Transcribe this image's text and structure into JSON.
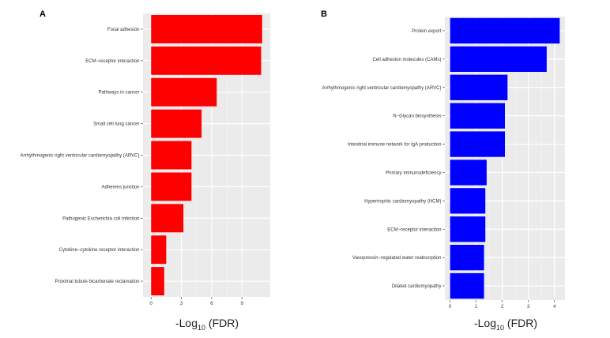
{
  "chart_data": [
    {
      "panel": "A",
      "type": "bar",
      "orientation": "horizontal",
      "color": "#ff0000",
      "categories": [
        "Focal adhesion",
        "ECM−receptor interaction",
        "Pathways in cancer",
        "Small cell lung cancer",
        "Arrhythmogenic right ventricular cardiomyopathy (ARVC)",
        "Adherens junction",
        "Pathogenic Escherichia coli infection",
        "Cytokine−cytokine receptor interaction",
        "Proximal tubule bicarbonate reclamation"
      ],
      "values": [
        11.0,
        10.9,
        6.5,
        5.0,
        4.0,
        4.0,
        3.2,
        1.5,
        1.3
      ],
      "xlim": [
        -0.8,
        11.8
      ],
      "xticks": [
        0,
        3,
        6,
        9
      ],
      "xlabel_main": "-Log",
      "xlabel_sub": "10",
      "xlabel_tail": " (FDR)"
    },
    {
      "panel": "B",
      "type": "bar",
      "orientation": "horizontal",
      "color": "#0000ff",
      "categories": [
        "Protein export",
        "Cell adhesion molecules (CAMs)",
        "Arrhythmogenic right ventricular cardiomyopathy (ARVC)",
        "N−Glycan biosynthesis",
        "Intestinal immune network for IgA production",
        "Primary immunodeficiency",
        "Hypertrophic cardiomyopathy (HCM)",
        "ECM−receptor interaction",
        "Vasopressin−regulated water reabsorption",
        "Dilated cardiomyopathy"
      ],
      "values": [
        4.2,
        3.7,
        2.2,
        2.1,
        2.1,
        1.4,
        1.35,
        1.35,
        1.3,
        1.3
      ],
      "xlim": [
        -0.2,
        4.4
      ],
      "xticks": [
        0,
        1,
        2,
        3,
        4
      ],
      "xlabel_main": "-Log",
      "xlabel_sub": "10",
      "xlabel_tail": " (FDR)"
    }
  ]
}
